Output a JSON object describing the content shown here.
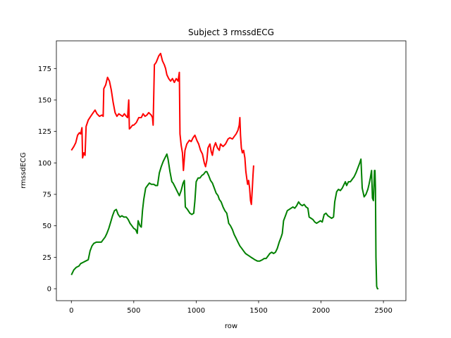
{
  "chart_data": {
    "type": "line",
    "title": "Subject 3 rmssdECG",
    "xlabel": "row",
    "ylabel": "rmssdECG",
    "xlim": [
      -120,
      2680
    ],
    "ylim": [
      -9.5,
      197
    ],
    "xticks": [
      0,
      500,
      1000,
      1500,
      2000,
      2500
    ],
    "yticks": [
      0,
      25,
      50,
      75,
      100,
      125,
      150,
      175
    ],
    "grid": false,
    "series": [
      {
        "color": "#ff0000",
        "points": [
          [
            0,
            110
          ],
          [
            20,
            113
          ],
          [
            35,
            116
          ],
          [
            50,
            122
          ],
          [
            65,
            124
          ],
          [
            75,
            123
          ],
          [
            85,
            128
          ],
          [
            90,
            104
          ],
          [
            100,
            108
          ],
          [
            110,
            106
          ],
          [
            118,
            129
          ],
          [
            135,
            134
          ],
          [
            155,
            137
          ],
          [
            175,
            140
          ],
          [
            190,
            142
          ],
          [
            205,
            139
          ],
          [
            225,
            137
          ],
          [
            245,
            138
          ],
          [
            255,
            137
          ],
          [
            260,
            159
          ],
          [
            275,
            162
          ],
          [
            290,
            168
          ],
          [
            305,
            165
          ],
          [
            320,
            158
          ],
          [
            335,
            148
          ],
          [
            350,
            140
          ],
          [
            365,
            137
          ],
          [
            380,
            139
          ],
          [
            395,
            138
          ],
          [
            410,
            137
          ],
          [
            425,
            139
          ],
          [
            440,
            137
          ],
          [
            450,
            136
          ],
          [
            460,
            150
          ],
          [
            465,
            127
          ],
          [
            475,
            128
          ],
          [
            490,
            130
          ],
          [
            500,
            130
          ],
          [
            520,
            132
          ],
          [
            540,
            136
          ],
          [
            560,
            136
          ],
          [
            575,
            139
          ],
          [
            590,
            137
          ],
          [
            605,
            138
          ],
          [
            620,
            140
          ],
          [
            640,
            138
          ],
          [
            650,
            136
          ],
          [
            655,
            130
          ],
          [
            665,
            178
          ],
          [
            680,
            180
          ],
          [
            700,
            185
          ],
          [
            715,
            187
          ],
          [
            730,
            181
          ],
          [
            745,
            178
          ],
          [
            755,
            175
          ],
          [
            765,
            170
          ],
          [
            780,
            167
          ],
          [
            795,
            165
          ],
          [
            810,
            167
          ],
          [
            825,
            164
          ],
          [
            840,
            167
          ],
          [
            855,
            165
          ],
          [
            865,
            172
          ],
          [
            870,
            123
          ],
          [
            880,
            114
          ],
          [
            890,
            108
          ],
          [
            898,
            94
          ],
          [
            910,
            110
          ],
          [
            925,
            115
          ],
          [
            945,
            118
          ],
          [
            960,
            117
          ],
          [
            975,
            120
          ],
          [
            990,
            122
          ],
          [
            1005,
            118
          ],
          [
            1020,
            115
          ],
          [
            1035,
            110
          ],
          [
            1050,
            107
          ],
          [
            1065,
            100
          ],
          [
            1075,
            97
          ],
          [
            1085,
            102
          ],
          [
            1095,
            112
          ],
          [
            1110,
            115
          ],
          [
            1120,
            109
          ],
          [
            1130,
            106
          ],
          [
            1140,
            112
          ],
          [
            1155,
            116
          ],
          [
            1170,
            112
          ],
          [
            1185,
            110
          ],
          [
            1195,
            115
          ],
          [
            1215,
            113
          ],
          [
            1235,
            115
          ],
          [
            1255,
            119
          ],
          [
            1270,
            120
          ],
          [
            1290,
            119
          ],
          [
            1305,
            121
          ],
          [
            1320,
            123
          ],
          [
            1335,
            126
          ],
          [
            1345,
            130
          ],
          [
            1350,
            136
          ],
          [
            1355,
            122
          ],
          [
            1362,
            112
          ],
          [
            1370,
            108
          ],
          [
            1380,
            110
          ],
          [
            1390,
            104
          ],
          [
            1398,
            93
          ],
          [
            1405,
            88
          ],
          [
            1412,
            83
          ],
          [
            1420,
            86
          ],
          [
            1428,
            80
          ],
          [
            1435,
            70
          ],
          [
            1442,
            67
          ],
          [
            1450,
            80
          ],
          [
            1455,
            90
          ],
          [
            1460,
            98
          ]
        ]
      },
      {
        "color": "#008000",
        "points": [
          [
            0,
            11
          ],
          [
            20,
            15
          ],
          [
            40,
            17
          ],
          [
            60,
            18
          ],
          [
            75,
            20
          ],
          [
            95,
            21
          ],
          [
            115,
            22
          ],
          [
            135,
            23
          ],
          [
            150,
            30
          ],
          [
            165,
            34
          ],
          [
            180,
            36
          ],
          [
            200,
            37
          ],
          [
            220,
            37
          ],
          [
            240,
            37
          ],
          [
            255,
            39
          ],
          [
            270,
            41
          ],
          [
            285,
            44
          ],
          [
            300,
            48
          ],
          [
            315,
            53
          ],
          [
            330,
            58
          ],
          [
            345,
            62
          ],
          [
            360,
            63
          ],
          [
            375,
            59
          ],
          [
            390,
            57
          ],
          [
            405,
            58
          ],
          [
            420,
            57
          ],
          [
            440,
            57
          ],
          [
            455,
            55
          ],
          [
            470,
            52
          ],
          [
            485,
            50
          ],
          [
            500,
            48
          ],
          [
            515,
            47
          ],
          [
            528,
            44
          ],
          [
            535,
            54
          ],
          [
            550,
            50
          ],
          [
            560,
            49
          ],
          [
            570,
            62
          ],
          [
            580,
            71
          ],
          [
            595,
            80
          ],
          [
            610,
            82
          ],
          [
            625,
            84
          ],
          [
            640,
            83
          ],
          [
            660,
            83
          ],
          [
            675,
            82
          ],
          [
            690,
            82
          ],
          [
            705,
            92
          ],
          [
            720,
            97
          ],
          [
            735,
            101
          ],
          [
            750,
            104
          ],
          [
            765,
            107
          ],
          [
            775,
            103
          ],
          [
            790,
            93
          ],
          [
            805,
            85
          ],
          [
            815,
            84
          ],
          [
            825,
            82
          ],
          [
            835,
            80
          ],
          [
            845,
            78
          ],
          [
            855,
            76
          ],
          [
            865,
            74
          ],
          [
            880,
            78
          ],
          [
            895,
            84
          ],
          [
            905,
            86
          ],
          [
            913,
            65
          ],
          [
            930,
            63
          ],
          [
            950,
            60
          ],
          [
            965,
            59
          ],
          [
            980,
            60
          ],
          [
            990,
            70
          ],
          [
            1000,
            85
          ],
          [
            1015,
            88
          ],
          [
            1030,
            88
          ],
          [
            1045,
            90
          ],
          [
            1060,
            91
          ],
          [
            1075,
            93
          ],
          [
            1085,
            93
          ],
          [
            1100,
            90
          ],
          [
            1115,
            86
          ],
          [
            1130,
            84
          ],
          [
            1145,
            80
          ],
          [
            1160,
            76
          ],
          [
            1175,
            74
          ],
          [
            1185,
            71
          ],
          [
            1200,
            69
          ],
          [
            1215,
            65
          ],
          [
            1230,
            62
          ],
          [
            1245,
            60
          ],
          [
            1255,
            55
          ],
          [
            1260,
            52
          ],
          [
            1275,
            50
          ],
          [
            1290,
            47
          ],
          [
            1305,
            43
          ],
          [
            1320,
            40
          ],
          [
            1335,
            37
          ],
          [
            1350,
            34
          ],
          [
            1365,
            32
          ],
          [
            1380,
            30
          ],
          [
            1395,
            28
          ],
          [
            1410,
            27
          ],
          [
            1425,
            26
          ],
          [
            1440,
            25
          ],
          [
            1455,
            24
          ],
          [
            1470,
            23
          ],
          [
            1490,
            22
          ],
          [
            1510,
            22
          ],
          [
            1530,
            23
          ],
          [
            1545,
            24
          ],
          [
            1560,
            24
          ],
          [
            1575,
            26
          ],
          [
            1590,
            28
          ],
          [
            1605,
            29
          ],
          [
            1620,
            28
          ],
          [
            1635,
            29
          ],
          [
            1650,
            32
          ],
          [
            1665,
            37
          ],
          [
            1680,
            41
          ],
          [
            1690,
            44
          ],
          [
            1700,
            54
          ],
          [
            1715,
            58
          ],
          [
            1730,
            62
          ],
          [
            1745,
            63
          ],
          [
            1760,
            64
          ],
          [
            1775,
            65
          ],
          [
            1790,
            64
          ],
          [
            1805,
            66
          ],
          [
            1820,
            69
          ],
          [
            1835,
            67
          ],
          [
            1850,
            66
          ],
          [
            1865,
            67
          ],
          [
            1880,
            65
          ],
          [
            1895,
            64
          ],
          [
            1905,
            57
          ],
          [
            1920,
            56
          ],
          [
            1935,
            55
          ],
          [
            1950,
            53
          ],
          [
            1965,
            52
          ],
          [
            1980,
            53
          ],
          [
            1995,
            54
          ],
          [
            2010,
            53
          ],
          [
            2025,
            59
          ],
          [
            2040,
            60
          ],
          [
            2055,
            58
          ],
          [
            2070,
            57
          ],
          [
            2085,
            56
          ],
          [
            2100,
            57
          ],
          [
            2110,
            69
          ],
          [
            2125,
            77
          ],
          [
            2140,
            79
          ],
          [
            2155,
            78
          ],
          [
            2170,
            80
          ],
          [
            2185,
            83
          ],
          [
            2195,
            85
          ],
          [
            2205,
            82
          ],
          [
            2220,
            85
          ],
          [
            2235,
            85
          ],
          [
            2250,
            87
          ],
          [
            2265,
            89
          ],
          [
            2280,
            92
          ],
          [
            2295,
            96
          ],
          [
            2310,
            100
          ],
          [
            2320,
            103
          ],
          [
            2330,
            80
          ],
          [
            2345,
            73
          ],
          [
            2360,
            75
          ],
          [
            2375,
            79
          ],
          [
            2385,
            83
          ],
          [
            2395,
            88
          ],
          [
            2405,
            94
          ],
          [
            2412,
            72
          ],
          [
            2420,
            70
          ],
          [
            2428,
            94
          ],
          [
            2432,
            94
          ],
          [
            2436,
            80
          ],
          [
            2440,
            25
          ],
          [
            2446,
            2
          ],
          [
            2452,
            0
          ],
          [
            2460,
            0
          ]
        ]
      }
    ]
  }
}
